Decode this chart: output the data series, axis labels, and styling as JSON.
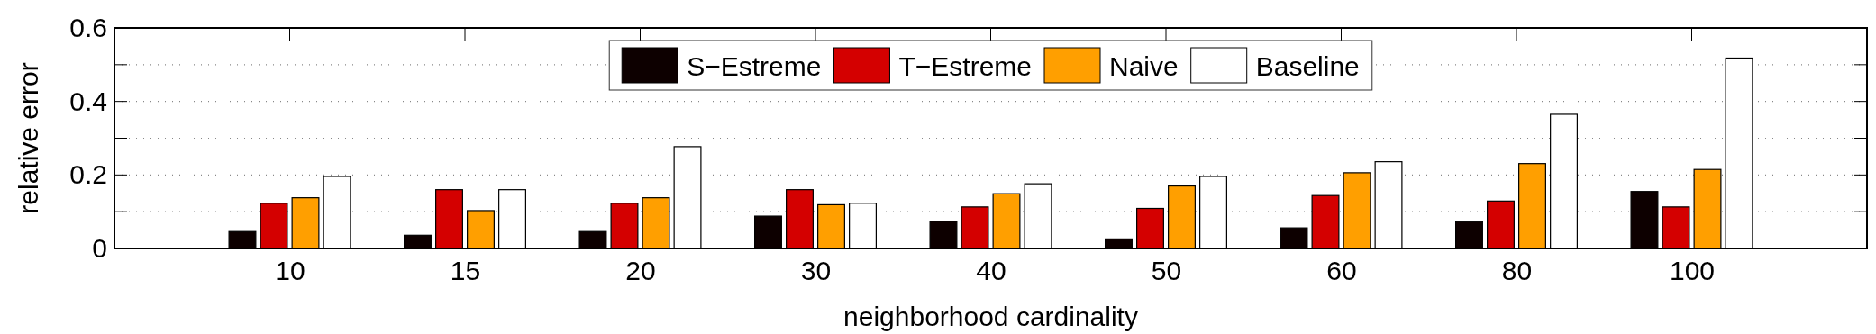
{
  "chart_data": {
    "type": "bar",
    "xlabel": "neighborhood cardinality",
    "ylabel": "relative error",
    "categories": [
      "10",
      "15",
      "20",
      "30",
      "40",
      "50",
      "60",
      "80",
      "100"
    ],
    "series": [
      {
        "name": "S−Estreme",
        "color": "#0d0000",
        "values": [
          0.046,
          0.036,
          0.046,
          0.088,
          0.074,
          0.026,
          0.056,
          0.073,
          0.155
        ]
      },
      {
        "name": "T−Estreme",
        "color": "#d40000",
        "values": [
          0.123,
          0.16,
          0.123,
          0.16,
          0.113,
          0.109,
          0.144,
          0.129,
          0.113
        ]
      },
      {
        "name": "Naive",
        "color": "#ff9f00",
        "values": [
          0.138,
          0.103,
          0.138,
          0.119,
          0.149,
          0.17,
          0.206,
          0.231,
          0.215
        ]
      },
      {
        "name": "Baseline",
        "color": "#ffffff",
        "values": [
          0.196,
          0.16,
          0.277,
          0.123,
          0.176,
          0.196,
          0.236,
          0.365,
          0.518
        ]
      }
    ],
    "ylim": [
      0,
      0.6
    ],
    "yticks": [
      0,
      {
        "value": 0.1,
        "label": null
      },
      0.2,
      {
        "value": 0.3,
        "label": null
      },
      0.4,
      {
        "value": 0.5,
        "label": null
      },
      0.6
    ],
    "grid": "y",
    "legend": "top"
  }
}
